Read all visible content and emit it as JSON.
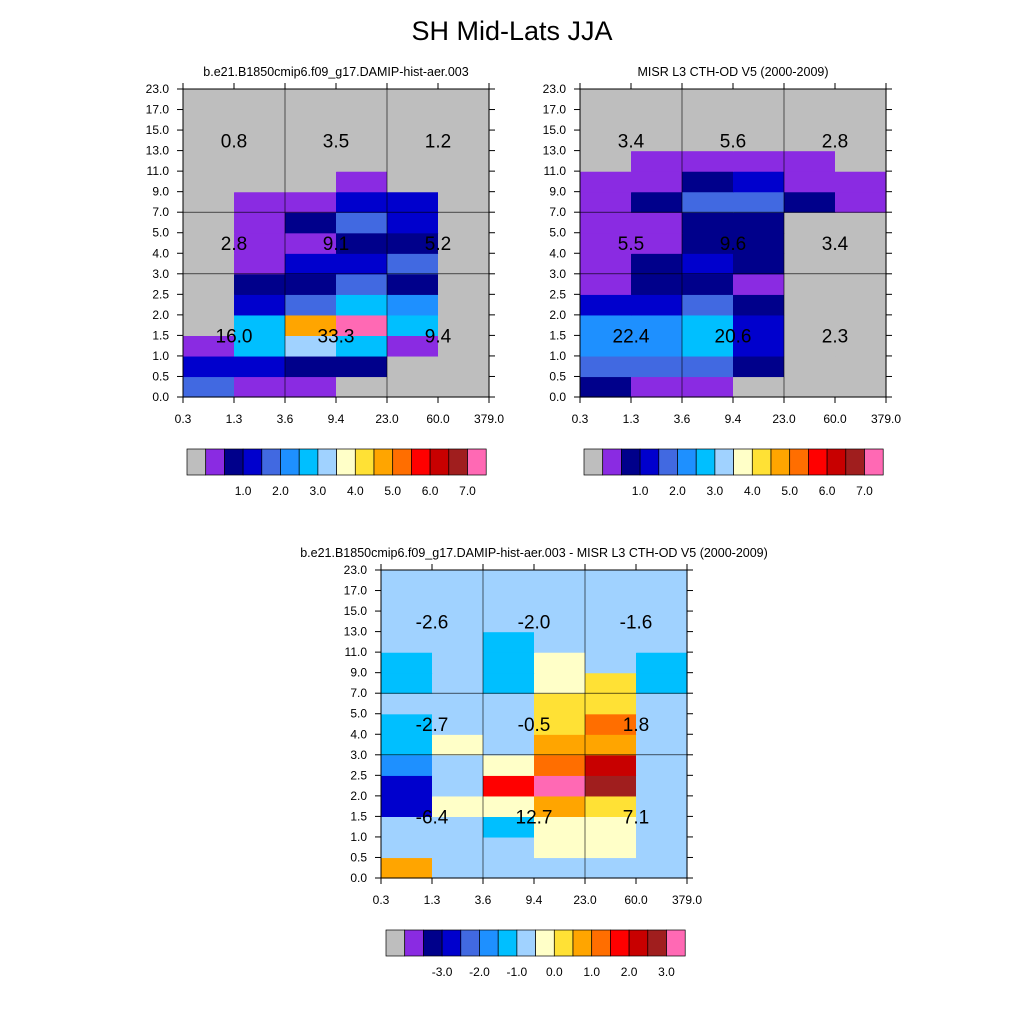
{
  "title": "SH Mid-Lats JJA",
  "panel_colors": [
    "#bebebe",
    "#8a2be2",
    "#00008b",
    "#0000cd",
    "#4169e1",
    "#1e90ff",
    "#00bfff",
    "#a0d2ff",
    "#ffffc8",
    "#ffe135",
    "#ffa500",
    "#ff6e00",
    "#ff0000",
    "#c80000",
    "#a01e1e",
    "#ff69b4"
  ],
  "diff_colors": [
    "#bebebe",
    "#8a2be2",
    "#00008b",
    "#0000cd",
    "#4169e1",
    "#1e90ff",
    "#00bfff",
    "#a0d2ff",
    "#ffffc8",
    "#ffe135",
    "#ffa500",
    "#ff6e00",
    "#ff0000",
    "#c80000",
    "#a01e1e",
    "#ff69b4"
  ],
  "chart_data": [
    {
      "type": "heatmap",
      "title": "b.e21.B1850cmip6.f09_g17.DAMIP-hist-aer.003",
      "x_ticks": [
        "0.3",
        "1.3",
        "3.6",
        "9.4",
        "23.0",
        "60.0",
        "379.0"
      ],
      "y_ticks": [
        "0.0",
        "0.5",
        "1.0",
        "1.5",
        "2.0",
        "2.5",
        "3.0",
        "4.0",
        "5.0",
        "7.0",
        "9.0",
        "11.0",
        "13.0",
        "15.0",
        "17.0",
        "23.0"
      ],
      "cells": [
        [
          4,
          1,
          1,
          0,
          0,
          0
        ],
        [
          3,
          3,
          2,
          2,
          0,
          0
        ],
        [
          1,
          6,
          7,
          6,
          1,
          0
        ],
        [
          0,
          6,
          10,
          15,
          6,
          0
        ],
        [
          0,
          3,
          4,
          6,
          5,
          0
        ],
        [
          0,
          2,
          2,
          4,
          2,
          0
        ],
        [
          0,
          1,
          3,
          3,
          4,
          0
        ],
        [
          0,
          1,
          1,
          2,
          2,
          0
        ],
        [
          0,
          1,
          2,
          4,
          3,
          0
        ],
        [
          0,
          1,
          1,
          3,
          3,
          0
        ],
        [
          0,
          0,
          0,
          1,
          0,
          0
        ],
        [
          0,
          0,
          0,
          0,
          0,
          0
        ],
        [
          0,
          0,
          0,
          0,
          0,
          0
        ],
        [
          0,
          0,
          0,
          0,
          0,
          0
        ],
        [
          0,
          0,
          0,
          0,
          0,
          0
        ]
      ],
      "annotations": [
        [
          "0.8",
          "3.5",
          "1.2"
        ],
        [
          "2.8",
          "9.1",
          "5.2"
        ],
        [
          "16.0",
          "33.3",
          "9.4"
        ]
      ],
      "legend": {
        "labels": [
          "1.0",
          "2.0",
          "3.0",
          "4.0",
          "5.0",
          "6.0",
          "7.0"
        ]
      }
    },
    {
      "type": "heatmap",
      "title": "MISR L3 CTH-OD V5 (2000-2009)",
      "x_ticks": [
        "0.3",
        "1.3",
        "3.6",
        "9.4",
        "23.0",
        "60.0",
        "379.0"
      ],
      "y_ticks": [
        "0.0",
        "0.5",
        "1.0",
        "1.5",
        "2.0",
        "2.5",
        "3.0",
        "4.0",
        "5.0",
        "7.0",
        "9.0",
        "11.0",
        "13.0",
        "15.0",
        "17.0",
        "23.0"
      ],
      "cells": [
        [
          2,
          1,
          1,
          0,
          0,
          0
        ],
        [
          4,
          4,
          4,
          2,
          0,
          0
        ],
        [
          5,
          5,
          6,
          3,
          0,
          0
        ],
        [
          5,
          5,
          6,
          3,
          0,
          0
        ],
        [
          3,
          3,
          4,
          2,
          0,
          0
        ],
        [
          1,
          2,
          2,
          1,
          0,
          0
        ],
        [
          1,
          2,
          3,
          2,
          0,
          0
        ],
        [
          1,
          1,
          2,
          2,
          0,
          0
        ],
        [
          1,
          1,
          2,
          2,
          0,
          0
        ],
        [
          1,
          2,
          4,
          4,
          2,
          1
        ],
        [
          1,
          1,
          2,
          3,
          1,
          1
        ],
        [
          0,
          1,
          1,
          1,
          1,
          0
        ],
        [
          0,
          0,
          0,
          0,
          0,
          0
        ],
        [
          0,
          0,
          0,
          0,
          0,
          0
        ],
        [
          0,
          0,
          0,
          0,
          0,
          0
        ]
      ],
      "annotations": [
        [
          "3.4",
          "5.6",
          "2.8"
        ],
        [
          "5.5",
          "9.6",
          "3.4"
        ],
        [
          "22.4",
          "20.6",
          "2.3"
        ]
      ],
      "legend": {
        "labels": [
          "1.0",
          "2.0",
          "3.0",
          "4.0",
          "5.0",
          "6.0",
          "7.0"
        ]
      }
    },
    {
      "type": "heatmap",
      "title": "b.e21.B1850cmip6.f09_g17.DAMIP-hist-aer.003 - MISR L3 CTH-OD V5 (2000-2009)",
      "x_ticks": [
        "0.3",
        "1.3",
        "3.6",
        "9.4",
        "23.0",
        "60.0",
        "379.0"
      ],
      "y_ticks": [
        "0.0",
        "0.5",
        "1.0",
        "1.5",
        "2.0",
        "2.5",
        "3.0",
        "4.0",
        "5.0",
        "7.0",
        "9.0",
        "11.0",
        "13.0",
        "15.0",
        "17.0",
        "23.0"
      ],
      "cells": [
        [
          10,
          7,
          7,
          7,
          7,
          7
        ],
        [
          7,
          7,
          7,
          8,
          8,
          7
        ],
        [
          7,
          7,
          6,
          8,
          8,
          7
        ],
        [
          3,
          8,
          8,
          10,
          9,
          7
        ],
        [
          3,
          7,
          12,
          15,
          14,
          7
        ],
        [
          5,
          7,
          8,
          11,
          13,
          7
        ],
        [
          6,
          8,
          7,
          10,
          10,
          7
        ],
        [
          6,
          7,
          7,
          9,
          11,
          7
        ],
        [
          7,
          7,
          7,
          9,
          9,
          7
        ],
        [
          6,
          7,
          6,
          8,
          9,
          6
        ],
        [
          6,
          7,
          6,
          8,
          7,
          6
        ],
        [
          7,
          7,
          6,
          7,
          7,
          7
        ],
        [
          7,
          7,
          7,
          7,
          7,
          7
        ],
        [
          7,
          7,
          7,
          7,
          7,
          7
        ],
        [
          7,
          7,
          7,
          7,
          7,
          7
        ]
      ],
      "annotations": [
        [
          "-2.6",
          "-2.0",
          "-1.6"
        ],
        [
          "-2.7",
          "-0.5",
          "1.8"
        ],
        [
          "-6.4",
          "12.7",
          "7.1"
        ]
      ],
      "legend": {
        "labels": [
          "-3.0",
          "-2.0",
          "-1.0",
          "0.0",
          "1.0",
          "2.0",
          "3.0"
        ]
      }
    }
  ]
}
